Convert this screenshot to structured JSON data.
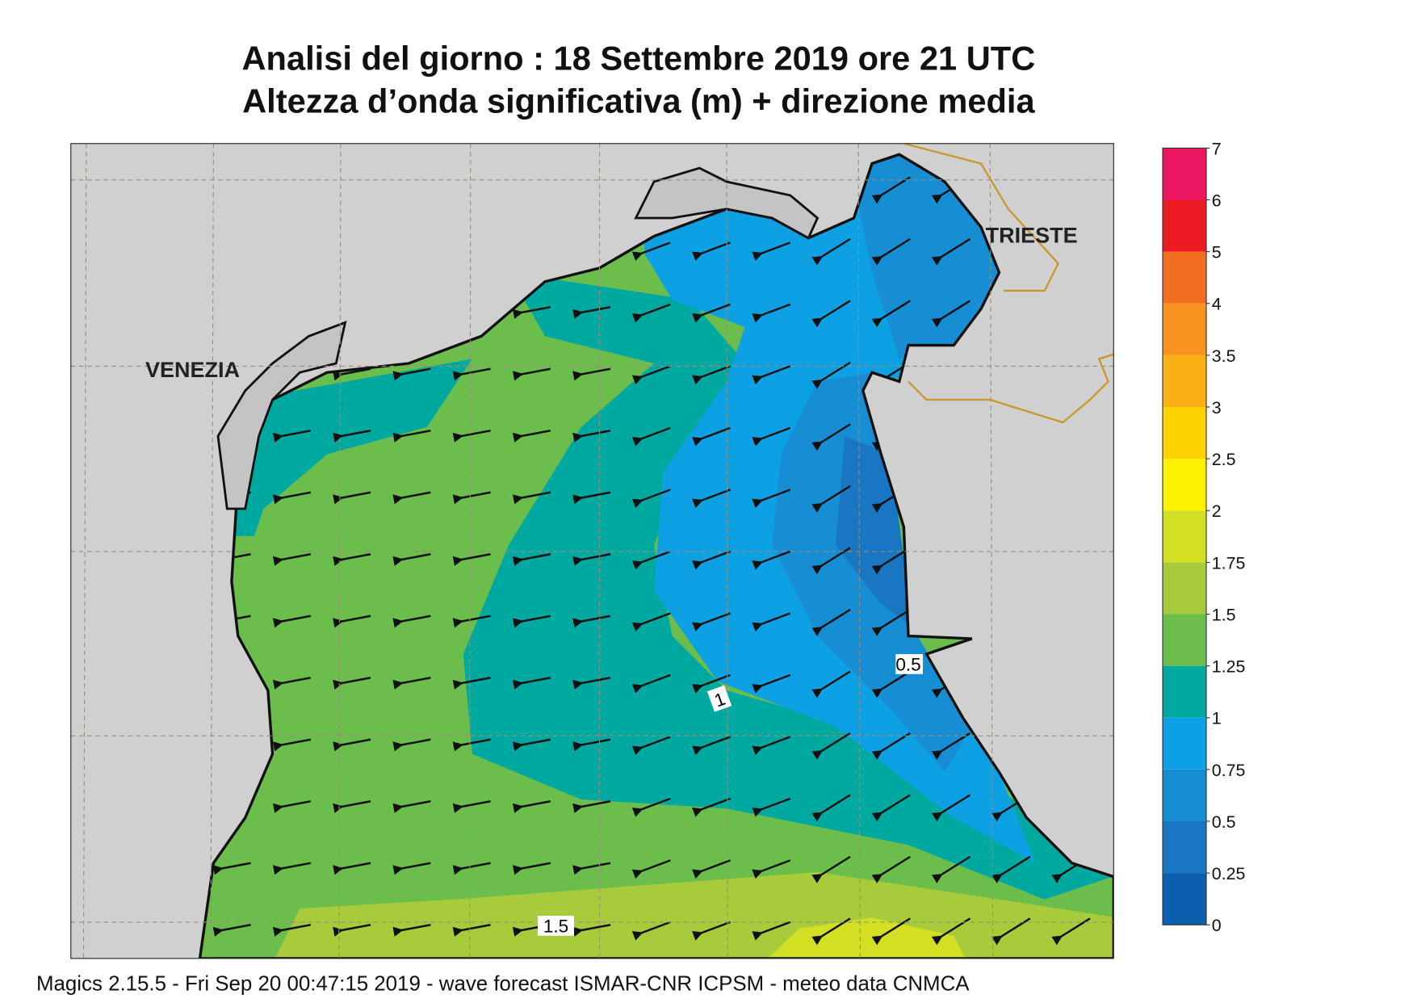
{
  "header": {
    "title_lines": [
      "Analisi del giorno :  18 Settembre 2019   ore 21 UTC",
      "Altezza d’onda significativa (m) + direzione media"
    ]
  },
  "map": {
    "cities": [
      "VENEZIA",
      "TRIESTE"
    ],
    "contour_labels": [
      "1",
      "1.5",
      "0.5"
    ],
    "colorbar": {
      "levels": [
        0,
        0.25,
        0.5,
        0.75,
        1,
        1.25,
        1.5,
        1.75,
        2,
        2.5,
        3,
        3.5,
        4,
        5,
        6,
        7
      ],
      "colors": [
        "#0b5fae",
        "#1876c3",
        "#178dd4",
        "#0da1e3",
        "#00a99f",
        "#6bbd4c",
        "#a7cb3a",
        "#d3df22",
        "#fff200",
        "#fdd300",
        "#fbb116",
        "#f7931e",
        "#f26f22",
        "#ec1c24",
        "#ec1561"
      ]
    }
  },
  "footer": "Magics 2.15.5 - Fri Sep 20 00:47:15 2019 - wave forecast  ISMAR-CNR  ICPSM - meteo data   CNMCA"
}
